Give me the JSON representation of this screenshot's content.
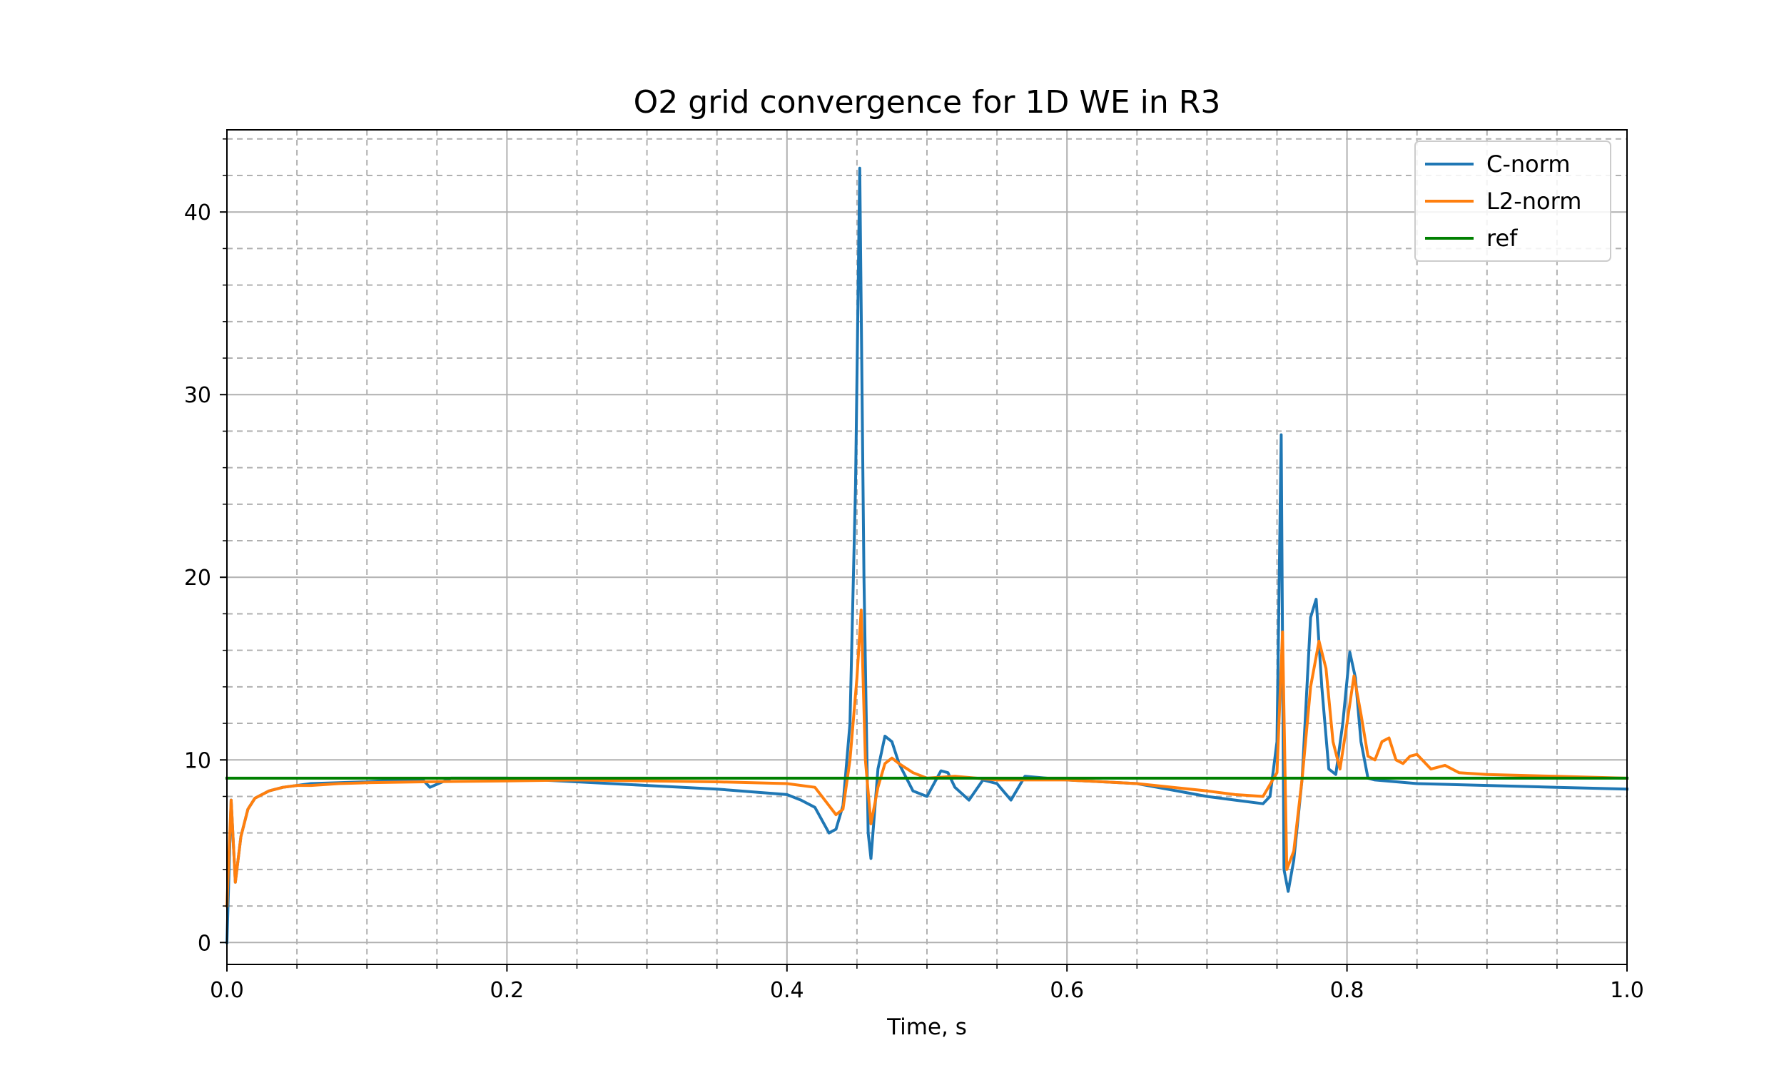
{
  "chart_data": {
    "type": "line",
    "title": "O2 grid convergence for 1D WE in R3",
    "xlabel": "Time, s",
    "ylabel": "",
    "xlim": [
      0.0,
      1.0
    ],
    "ylim": [
      -1.2,
      44.5
    ],
    "xticks": [
      "0.0",
      "0.2",
      "0.4",
      "0.6",
      "0.8",
      "1.0"
    ],
    "yticks": [
      "0",
      "10",
      "20",
      "30",
      "40"
    ],
    "grid": "major solid, minor dashed",
    "legend_position": "top-right",
    "series": [
      {
        "name": "C-norm",
        "color": "#1f77b4",
        "x": [
          0.0,
          0.003,
          0.006,
          0.01,
          0.015,
          0.02,
          0.03,
          0.04,
          0.05,
          0.06,
          0.08,
          0.1,
          0.12,
          0.14,
          0.145,
          0.16,
          0.2,
          0.25,
          0.3,
          0.35,
          0.4,
          0.41,
          0.42,
          0.43,
          0.435,
          0.44,
          0.445,
          0.449,
          0.452,
          0.455,
          0.458,
          0.46,
          0.465,
          0.47,
          0.475,
          0.48,
          0.49,
          0.5,
          0.51,
          0.515,
          0.52,
          0.53,
          0.54,
          0.55,
          0.56,
          0.57,
          0.6,
          0.65,
          0.7,
          0.72,
          0.74,
          0.745,
          0.75,
          0.753,
          0.755,
          0.758,
          0.762,
          0.768,
          0.774,
          0.778,
          0.782,
          0.787,
          0.792,
          0.797,
          0.802,
          0.806,
          0.81,
          0.815,
          0.82,
          0.85,
          0.9,
          0.95,
          1.0
        ],
        "values": [
          0.0,
          7.8,
          3.3,
          5.8,
          7.3,
          7.9,
          8.3,
          8.5,
          8.6,
          8.7,
          8.75,
          8.8,
          8.9,
          8.9,
          8.5,
          9.0,
          9.0,
          8.8,
          8.6,
          8.4,
          8.1,
          7.8,
          7.4,
          6.0,
          6.2,
          7.5,
          12.0,
          25.0,
          42.4,
          20.0,
          6.0,
          4.6,
          9.5,
          11.3,
          11.0,
          9.8,
          8.3,
          8.0,
          9.4,
          9.3,
          8.5,
          7.8,
          8.9,
          8.7,
          7.8,
          9.1,
          8.9,
          8.7,
          8.0,
          7.8,
          7.6,
          8.0,
          11.0,
          27.8,
          4.0,
          2.8,
          4.5,
          9.0,
          17.8,
          18.8,
          14.0,
          9.5,
          9.2,
          12.0,
          15.9,
          14.5,
          11.0,
          9.0,
          8.9,
          8.7,
          8.6,
          8.5,
          8.4
        ]
      },
      {
        "name": "L2-norm",
        "color": "#ff7f0e",
        "x": [
          0.0,
          0.003,
          0.006,
          0.01,
          0.015,
          0.02,
          0.03,
          0.04,
          0.05,
          0.06,
          0.08,
          0.1,
          0.14,
          0.2,
          0.25,
          0.3,
          0.35,
          0.4,
          0.42,
          0.43,
          0.435,
          0.44,
          0.445,
          0.45,
          0.453,
          0.456,
          0.46,
          0.465,
          0.47,
          0.475,
          0.48,
          0.49,
          0.5,
          0.52,
          0.55,
          0.6,
          0.65,
          0.7,
          0.72,
          0.74,
          0.75,
          0.754,
          0.757,
          0.762,
          0.768,
          0.774,
          0.78,
          0.785,
          0.79,
          0.795,
          0.8,
          0.805,
          0.81,
          0.815,
          0.82,
          0.825,
          0.83,
          0.835,
          0.84,
          0.845,
          0.85,
          0.86,
          0.87,
          0.88,
          0.9,
          0.95,
          1.0
        ],
        "values": [
          2.0,
          7.8,
          3.3,
          5.8,
          7.3,
          7.9,
          8.3,
          8.5,
          8.6,
          8.6,
          8.7,
          8.75,
          8.8,
          8.85,
          8.9,
          8.85,
          8.8,
          8.7,
          8.5,
          7.5,
          7.0,
          7.3,
          10.0,
          14.5,
          18.2,
          10.0,
          6.5,
          8.5,
          9.8,
          10.1,
          9.8,
          9.3,
          9.0,
          9.1,
          8.9,
          8.9,
          8.7,
          8.3,
          8.1,
          8.0,
          9.3,
          17.0,
          4.0,
          5.0,
          9.0,
          14.0,
          16.5,
          15.0,
          11.0,
          9.5,
          12.0,
          14.6,
          12.5,
          10.2,
          10.0,
          11.0,
          11.2,
          10.0,
          9.8,
          10.2,
          10.3,
          9.5,
          9.7,
          9.3,
          9.2,
          9.1,
          9.0
        ]
      },
      {
        "name": "ref",
        "color": "#008000",
        "x": [
          0.0,
          1.0
        ],
        "values": [
          9.0,
          9.0
        ]
      }
    ]
  }
}
